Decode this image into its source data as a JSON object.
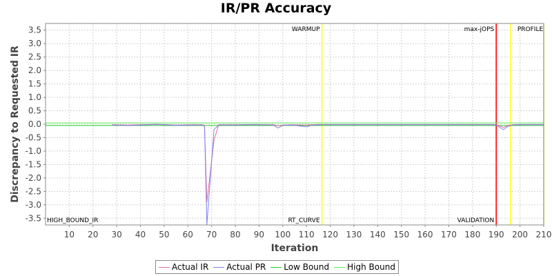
{
  "chart_data": {
    "type": "line",
    "title": "IR/PR Accuracy",
    "xlabel": "Iteration",
    "ylabel": "Discrepancy to Requested IR",
    "xlim": [
      0,
      210
    ],
    "ylim": [
      -3.75,
      3.75
    ],
    "x_ticks": [
      10,
      20,
      30,
      40,
      50,
      60,
      70,
      80,
      90,
      100,
      110,
      120,
      130,
      140,
      150,
      160,
      170,
      180,
      190,
      200,
      210
    ],
    "y_ticks": [
      3.5,
      3.0,
      2.5,
      2.0,
      1.5,
      1.0,
      0.5,
      0.0,
      -0.5,
      -1.0,
      -1.5,
      -2.0,
      -2.5,
      -3.0,
      -3.5
    ],
    "grid": true,
    "legend_position": "bottom",
    "series": [
      {
        "name": "Actual IR",
        "color": "#e07090",
        "x": [
          28,
          35,
          40,
          47,
          55,
          62,
          66,
          67,
          68,
          71,
          73,
          80,
          88,
          96,
          98,
          100,
          104,
          110,
          112,
          116,
          120,
          130,
          140,
          150,
          160,
          170,
          180,
          188,
          190,
          193,
          195,
          197,
          200,
          210
        ],
        "y": [
          -0.02,
          -0.03,
          -0.02,
          0.0,
          -0.03,
          -0.02,
          -0.02,
          -0.05,
          -2.9,
          -0.6,
          -0.02,
          -0.02,
          -0.01,
          -0.02,
          -0.06,
          -0.03,
          -0.02,
          -0.03,
          -0.02,
          -0.01,
          -0.01,
          -0.01,
          -0.01,
          -0.01,
          -0.01,
          -0.01,
          -0.01,
          -0.01,
          -0.02,
          -0.12,
          -0.05,
          -0.02,
          -0.01,
          -0.01
        ]
      },
      {
        "name": "Actual PR",
        "color": "#8080f0",
        "x": [
          28,
          35,
          40,
          47,
          55,
          62,
          66,
          67,
          68,
          71,
          73,
          80,
          88,
          96,
          98,
          100,
          104,
          110,
          112,
          116,
          120,
          130,
          140,
          150,
          160,
          170,
          180,
          188,
          190,
          193,
          195,
          197,
          200,
          210
        ],
        "y": [
          -0.03,
          -0.05,
          -0.03,
          -0.01,
          -0.04,
          -0.03,
          -0.03,
          -0.08,
          -3.75,
          -0.2,
          -0.03,
          -0.03,
          -0.02,
          -0.03,
          -0.14,
          -0.04,
          -0.03,
          -0.1,
          -0.04,
          -0.02,
          -0.02,
          -0.02,
          -0.02,
          -0.02,
          -0.02,
          -0.02,
          -0.02,
          -0.02,
          -0.04,
          -0.2,
          -0.08,
          -0.03,
          -0.02,
          -0.02
        ]
      },
      {
        "name": "Low Bound",
        "color": "#22cc22",
        "x": [
          0,
          210
        ],
        "y": [
          -0.05,
          -0.05
        ]
      },
      {
        "name": "High Bound",
        "color": "#55ee55",
        "x": [
          0,
          210
        ],
        "y": [
          0.05,
          0.05
        ]
      }
    ],
    "markers": [
      {
        "x": 116.5,
        "color": "#ffff44",
        "label": "WARMUP",
        "position": "top"
      },
      {
        "x": 116.5,
        "color": "#ffff44",
        "label": "RT_CURVE",
        "position": "bottom"
      },
      {
        "x": 190,
        "color": "#ff2222",
        "label": "max-jOPS",
        "position": "top"
      },
      {
        "x": 190,
        "color": "#ff2222",
        "label": "VALIDATION",
        "position": "bottom"
      },
      {
        "x": 196,
        "color": "#ffff44",
        "label": "PROFILE",
        "position": "top"
      },
      {
        "x": 210,
        "color": "#ffff44",
        "label": "",
        "position": "top"
      }
    ],
    "corner_label": "HIGH_BOUND_IR"
  },
  "legend": {
    "items": [
      {
        "label": "Actual IR",
        "color": "#e07090"
      },
      {
        "label": "Actual PR",
        "color": "#8080f0"
      },
      {
        "label": "Low Bound",
        "color": "#22cc22"
      },
      {
        "label": "High Bound",
        "color": "#55ee55"
      }
    ]
  }
}
